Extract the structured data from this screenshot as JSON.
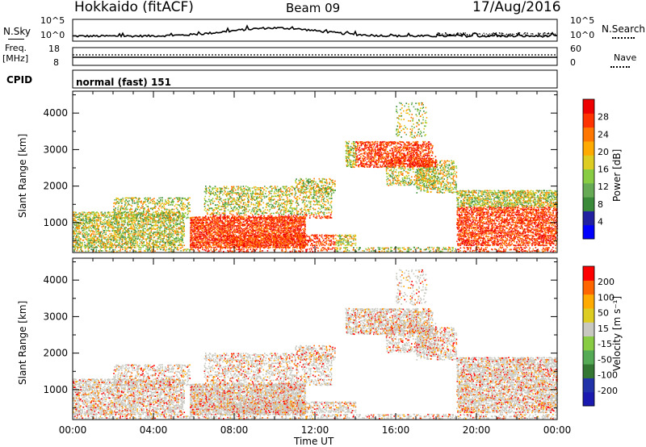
{
  "header": {
    "title": "Hokkaido (fitACF)",
    "beam": "Beam 09",
    "date": "17/Aug/2016"
  },
  "side_labels": {
    "nsky": "N.Sky",
    "nsearch": "N.Search",
    "freq": "Freq.",
    "freq_unit": "[MHz]",
    "nave": "Nave",
    "cpid": "CPID"
  },
  "cpid_text": "normal (fast) 151",
  "noise_axis": {
    "left_top": "10^5",
    "left_bottom": "10^0",
    "right_top": "10^5",
    "right_bottom": "10^0"
  },
  "freq_axis": {
    "left_top": "18",
    "left_bottom": "8",
    "right_top": "60",
    "right_bottom": "0"
  },
  "colors": {
    "power": [
      "#0000ff",
      "#2020a0",
      "#3a8a3a",
      "#66aa55",
      "#88cc44",
      "#ddcc22",
      "#ffaa00",
      "#ff7700",
      "#ff3300",
      "#ee0000"
    ],
    "velocity": [
      "#1a1ab0",
      "#2233aa",
      "#337733",
      "#55aa55",
      "#88cc44",
      "#c8c8c0",
      "#ddcc22",
      "#ffaa00",
      "#ff6600",
      "#ff0000"
    ]
  },
  "chart_data": [
    {
      "type": "heatmap",
      "name": "power",
      "ylabel": "Slant Range [km]",
      "ylim": [
        180,
        4600
      ],
      "yticks": [
        "1000",
        "2000",
        "3000",
        "4000"
      ],
      "colorbar_label": "Power [dB]",
      "colorbar_ticks": [
        "28",
        "24",
        "20",
        "16",
        "12",
        "8",
        "4"
      ]
    },
    {
      "type": "heatmap",
      "name": "velocity",
      "ylabel": "Slant Range [km]",
      "ylim": [
        180,
        4600
      ],
      "yticks": [
        "1000",
        "2000",
        "3000",
        "4000"
      ],
      "colorbar_label": "Velocity [m s⁻¹]",
      "colorbar_ticks": [
        "200",
        "100",
        "50",
        "15",
        "-15",
        "-50",
        "-100",
        "-200"
      ]
    }
  ],
  "x_axis": {
    "label": "Time UT",
    "ticks": [
      "00:00",
      "04:00",
      "08:00",
      "12:00",
      "16:00",
      "20:00",
      "00:00"
    ],
    "range_hours": [
      0,
      24
    ]
  }
}
